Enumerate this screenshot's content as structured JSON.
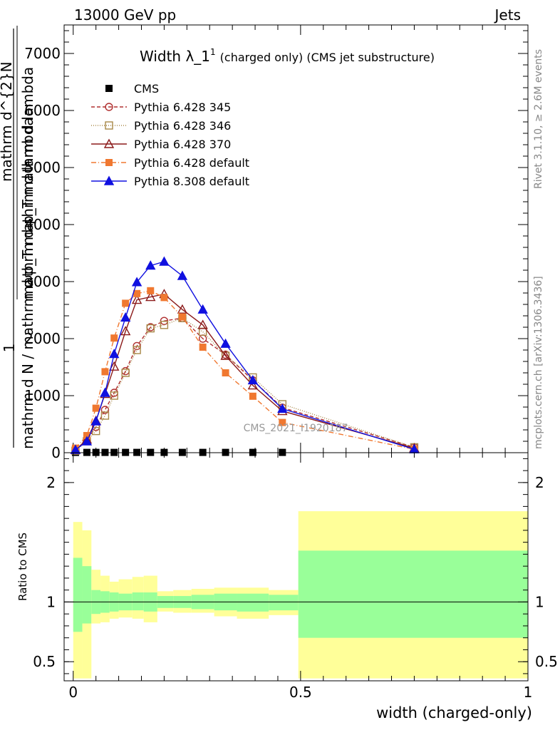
{
  "header": {
    "left": "13000 GeV pp",
    "right": "Jets"
  },
  "side_labels": {
    "rivet": "Rivet 3.1.10, ≥ 2.6M events",
    "mcplots": "mcplots.cern.ch [arXiv:1306.3436]"
  },
  "watermark": "CMS_2021_I1920187",
  "chart_data": [
    {
      "type": "line",
      "title_main": "Width λ_1",
      "title_sup": "1",
      "title_suffix": "(charged only) (CMS jet substructure)",
      "ylabel_numerator": "1",
      "ylabel_denominator": "mathrm d N / mathrm d p_T mathrm d lambda",
      "ylabel_top": "mathrm d^{2}N",
      "ylabel_mid": "mathrm d p_T mathrm d lambda",
      "xlim": [
        -0.02,
        1.0
      ],
      "ylim": [
        0,
        7500
      ],
      "yticks": [
        0,
        1000,
        2000,
        3000,
        4000,
        5000,
        6000,
        7000
      ],
      "ytick_labels": [
        "0",
        "1000",
        "2000",
        "3000",
        "4000",
        "5000",
        "6000",
        "7000"
      ],
      "x": [
        0.005,
        0.03,
        0.05,
        0.07,
        0.09,
        0.115,
        0.14,
        0.17,
        0.2,
        0.24,
        0.285,
        0.335,
        0.395,
        0.46,
        0.75
      ],
      "series": [
        {
          "name": "CMS",
          "color": "#000000",
          "marker": "square-filled",
          "dash": "none",
          "x": [
            0.005,
            0.03,
            0.05,
            0.07,
            0.09,
            0.115,
            0.14,
            0.17,
            0.2,
            0.24,
            0.285,
            0.335,
            0.395,
            0.46
          ],
          "values": [
            5,
            5,
            5,
            5,
            5,
            5,
            5,
            5,
            5,
            5,
            5,
            5,
            5,
            5
          ]
        },
        {
          "name": "Pythia 6.428 345",
          "color": "#b03030",
          "marker": "circle-open",
          "dash": "5,3",
          "values": [
            40,
            220,
            450,
            750,
            1050,
            1430,
            1870,
            2200,
            2310,
            2360,
            2000,
            1720,
            1270,
            790,
            95
          ]
        },
        {
          "name": "Pythia 6.428 346",
          "color": "#a88848",
          "marker": "square-open",
          "dash": "1,2",
          "values": [
            35,
            200,
            380,
            650,
            1000,
            1400,
            1800,
            2180,
            2240,
            2360,
            2120,
            1700,
            1320,
            850,
            95
          ]
        },
        {
          "name": "Pythia 6.428 370",
          "color": "#8b1a1a",
          "marker": "triangle-open",
          "dash": "none",
          "values": [
            50,
            230,
            560,
            1030,
            1510,
            2130,
            2680,
            2730,
            2780,
            2510,
            2240,
            1700,
            1180,
            730,
            80
          ]
        },
        {
          "name": "Pythia 6.428 default",
          "color": "#f07830",
          "marker": "square-filled",
          "dash": "7,3,1,3",
          "values": [
            80,
            300,
            780,
            1420,
            2010,
            2620,
            2790,
            2840,
            2720,
            2380,
            1850,
            1400,
            990,
            530,
            60
          ]
        },
        {
          "name": "Pythia 8.308 default",
          "color": "#1010e0",
          "marker": "triangle-filled",
          "dash": "none",
          "values": [
            50,
            200,
            550,
            1050,
            1730,
            2370,
            2990,
            3280,
            3350,
            3100,
            2510,
            1910,
            1270,
            770,
            60
          ]
        }
      ]
    },
    {
      "type": "area",
      "ylabel": "Ratio to CMS",
      "xlabel": "width (charged-only)",
      "xlim": [
        -0.02,
        1.0
      ],
      "ylim": [
        0.34,
        2.25
      ],
      "yticks": [
        0.5,
        1,
        2
      ],
      "ytick_labels": [
        "0.5",
        "1",
        "2"
      ],
      "xticks": [
        0,
        0.5,
        1
      ],
      "xtick_labels": [
        "0",
        "0.5",
        "1"
      ],
      "bins": [
        {
          "x0": 0.0,
          "x1": 0.02,
          "inner": [
            0.75,
            1.37
          ],
          "outer": [
            0.36,
            1.67
          ]
        },
        {
          "x0": 0.02,
          "x1": 0.04,
          "inner": [
            0.82,
            1.3
          ],
          "outer": [
            0.36,
            1.6
          ]
        },
        {
          "x0": 0.04,
          "x1": 0.06,
          "inner": [
            0.9,
            1.1
          ],
          "outer": [
            0.82,
            1.27
          ]
        },
        {
          "x0": 0.06,
          "x1": 0.08,
          "inner": [
            0.91,
            1.09
          ],
          "outer": [
            0.83,
            1.22
          ]
        },
        {
          "x0": 0.08,
          "x1": 0.1,
          "inner": [
            0.92,
            1.08
          ],
          "outer": [
            0.86,
            1.17
          ]
        },
        {
          "x0": 0.1,
          "x1": 0.13,
          "inner": [
            0.93,
            1.07
          ],
          "outer": [
            0.87,
            1.19
          ]
        },
        {
          "x0": 0.13,
          "x1": 0.155,
          "inner": [
            0.93,
            1.08
          ],
          "outer": [
            0.86,
            1.21
          ]
        },
        {
          "x0": 0.155,
          "x1": 0.185,
          "inner": [
            0.92,
            1.08
          ],
          "outer": [
            0.83,
            1.22
          ]
        },
        {
          "x0": 0.185,
          "x1": 0.22,
          "inner": [
            0.95,
            1.05
          ],
          "outer": [
            0.92,
            1.09
          ]
        },
        {
          "x0": 0.22,
          "x1": 0.26,
          "inner": [
            0.95,
            1.05
          ],
          "outer": [
            0.91,
            1.1
          ]
        },
        {
          "x0": 0.26,
          "x1": 0.31,
          "inner": [
            0.94,
            1.06
          ],
          "outer": [
            0.91,
            1.11
          ]
        },
        {
          "x0": 0.31,
          "x1": 0.36,
          "inner": [
            0.93,
            1.07
          ],
          "outer": [
            0.88,
            1.12
          ]
        },
        {
          "x0": 0.36,
          "x1": 0.43,
          "inner": [
            0.92,
            1.07
          ],
          "outer": [
            0.86,
            1.12
          ]
        },
        {
          "x0": 0.43,
          "x1": 0.495,
          "inner": [
            0.93,
            1.06
          ],
          "outer": [
            0.89,
            1.1
          ]
        },
        {
          "x0": 0.495,
          "x1": 1.0,
          "inner": [
            0.7,
            1.43
          ],
          "outer": [
            0.36,
            1.76
          ]
        }
      ],
      "inner_color": "#99ff99",
      "outer_color": "#ffff99"
    }
  ]
}
